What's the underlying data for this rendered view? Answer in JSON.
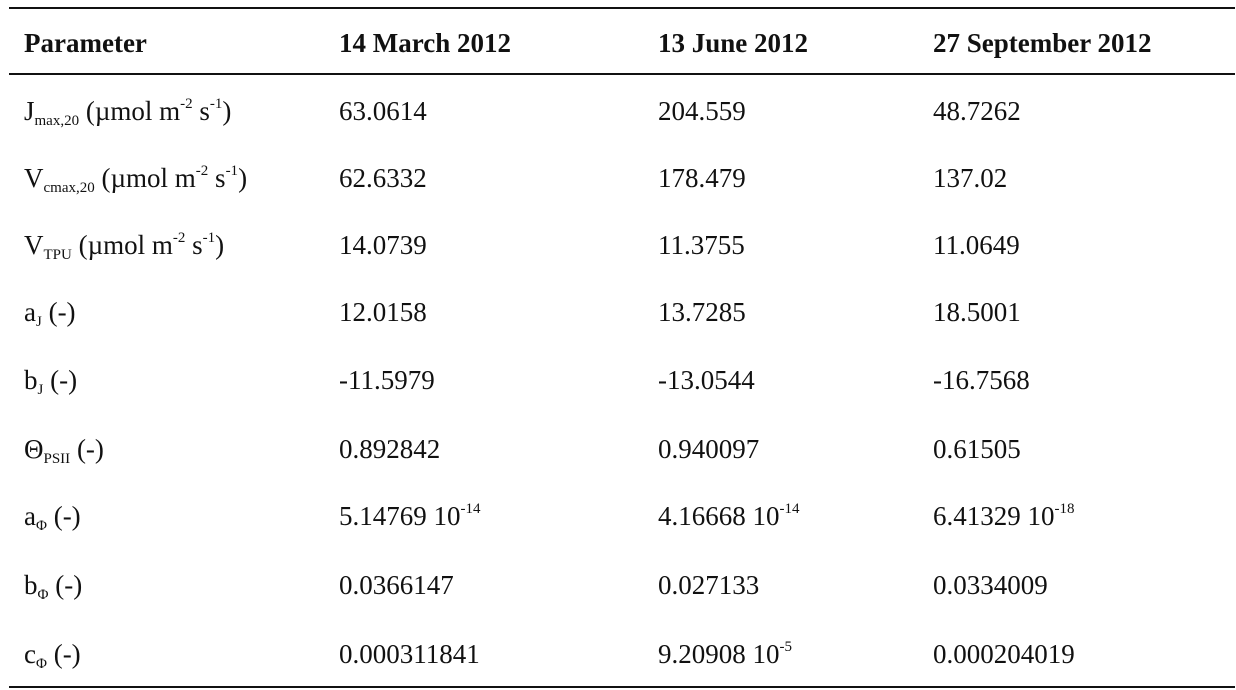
{
  "table": {
    "headers": [
      "Parameter",
      "14 March 2012",
      "13 June 2012",
      "27 September 2012"
    ],
    "rows": [
      {
        "param": {
          "symbol": "J",
          "sub": "max,20",
          "pre": " (µmol m",
          "sup1": "-2",
          "mid": " s",
          "sup2": "-1",
          "post": ")"
        },
        "values": [
          "63.0614",
          "204.559",
          "48.7262"
        ]
      },
      {
        "param": {
          "symbol": "V",
          "sub": "cmax,20",
          "pre": " (µmol m",
          "sup1": "-2",
          "mid": " s",
          "sup2": "-1",
          "post": ")"
        },
        "values": [
          "62.6332",
          "178.479",
          "137.02"
        ]
      },
      {
        "param": {
          "symbol": "V",
          "sub": "TPU",
          "pre": " (µmol m",
          "sup1": "-2",
          "mid": " s",
          "sup2": "-1",
          "post": ")"
        },
        "values": [
          "14.0739",
          "11.3755",
          "11.0649"
        ]
      },
      {
        "param": {
          "symbol": "a",
          "sub": "J",
          "unit": " (-)"
        },
        "values": [
          "12.0158",
          "13.7285",
          "18.5001"
        ]
      },
      {
        "param": {
          "symbol": "b",
          "sub": "J",
          "unit": " (-)"
        },
        "values": [
          "-11.5979",
          "-13.0544",
          "-16.7568"
        ]
      },
      {
        "param": {
          "symbol": "Θ",
          "sub": "PSII",
          "unit": " (-)"
        },
        "values": [
          "0.892842",
          "0.940097",
          "0.61505"
        ]
      },
      {
        "param": {
          "symbol": "a",
          "sub": "Φ",
          "unit": " (-)"
        },
        "values": [
          {
            "mantissa": "5.14769 10",
            "exp": "-14"
          },
          {
            "mantissa": "4.16668 10",
            "exp": "-14"
          },
          {
            "mantissa": "6.41329 10",
            "exp": "-18"
          }
        ]
      },
      {
        "param": {
          "symbol": "b",
          "sub": "Φ",
          "unit": " (-)"
        },
        "values": [
          "0.0366147",
          "0.027133",
          "0.0334009"
        ]
      },
      {
        "param": {
          "symbol": "c",
          "sub": "Φ",
          "unit": " (-)"
        },
        "values": [
          "0.000311841",
          {
            "mantissa": "9.20908 10",
            "exp": "-5"
          },
          "0.000204019"
        ]
      }
    ]
  }
}
